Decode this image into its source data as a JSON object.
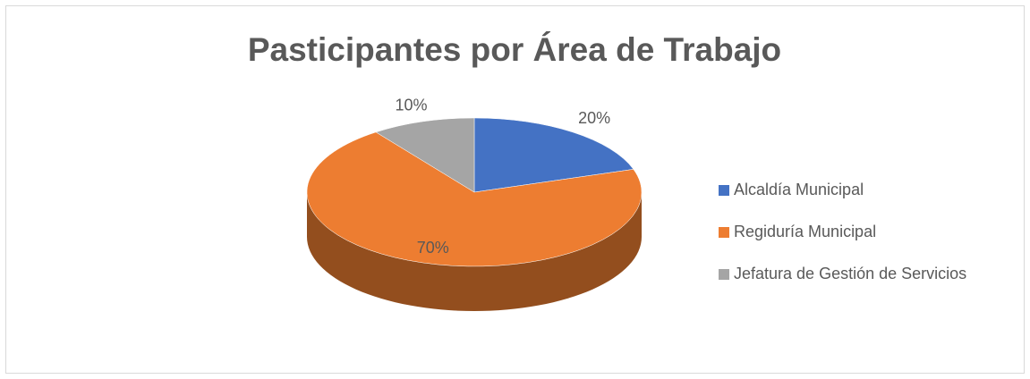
{
  "chart_data": {
    "type": "pie",
    "title": "Pasticipantes por Área de Trabajo",
    "categories": [
      "Alcaldía Municipal",
      "Regiduría Municipal",
      "Jefatura de Gestión de Servicios"
    ],
    "values": [
      20,
      70,
      10
    ],
    "value_labels": [
      "20%",
      "70%",
      "10%"
    ],
    "colors": [
      "#4472c4",
      "#ed7d31",
      "#a5a5a5"
    ],
    "legend": "right"
  }
}
